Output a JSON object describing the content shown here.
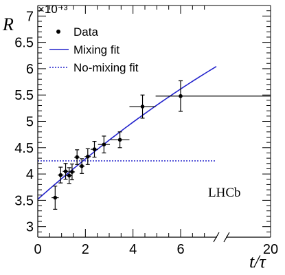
{
  "chart_data": {
    "type": "scatter",
    "ylabel": "R",
    "xlabel": "t/τ",
    "y_exponent_label": "×10⁻³",
    "xlim": [
      0,
      20
    ],
    "ylim": [
      2.8,
      7.2
    ],
    "x_axis_break": true,
    "x_break_position": 7.5,
    "x_tick_labels": [
      "0",
      "2",
      "4",
      "6",
      "20"
    ],
    "y_tick_labels": [
      "3",
      "3.5",
      "4",
      "4.5",
      "5",
      "5.5",
      "6",
      "6.5",
      "7"
    ],
    "annotation": "LHCb",
    "legend": {
      "placement": "top-left",
      "entries": [
        {
          "label": "Data",
          "style": "point",
          "color": "#000000"
        },
        {
          "label": "Mixing fit",
          "style": "solid-line",
          "color": "#2222cc"
        },
        {
          "label": "No-mixing fit",
          "style": "dotted-line",
          "color": "#2222cc"
        }
      ]
    },
    "series": [
      {
        "name": "Data",
        "points": [
          {
            "x": 0.73,
            "xerr": [
              0.15,
              0.15
            ],
            "y": 3.55,
            "yerr": 0.22
          },
          {
            "x": 0.96,
            "xerr": [
              0.12,
              0.12
            ],
            "y": 3.98,
            "yerr": 0.15
          },
          {
            "x": 1.17,
            "xerr": [
              0.12,
              0.12
            ],
            "y": 4.05,
            "yerr": 0.15
          },
          {
            "x": 1.32,
            "xerr": [
              0.12,
              0.12
            ],
            "y": 3.97,
            "yerr": 0.15
          },
          {
            "x": 1.44,
            "xerr": [
              0.12,
              0.12
            ],
            "y": 4.04,
            "yerr": 0.15
          },
          {
            "x": 1.65,
            "xerr": [
              0.12,
              0.12
            ],
            "y": 4.32,
            "yerr": 0.14
          },
          {
            "x": 1.85,
            "xerr": [
              0.12,
              0.12
            ],
            "y": 4.15,
            "yerr": 0.14
          },
          {
            "x": 2.1,
            "xerr": [
              0.13,
              0.13
            ],
            "y": 4.33,
            "yerr": 0.15
          },
          {
            "x": 2.38,
            "xerr": [
              0.16,
              0.16
            ],
            "y": 4.47,
            "yerr": 0.15
          },
          {
            "x": 2.78,
            "xerr": [
              0.25,
              0.25
            ],
            "y": 4.56,
            "yerr": 0.16
          },
          {
            "x": 3.45,
            "xerr": [
              0.4,
              0.4
            ],
            "y": 4.65,
            "yerr": 0.15
          },
          {
            "x": 4.4,
            "xerr": [
              0.55,
              0.55
            ],
            "y": 5.28,
            "yerr": 0.22
          },
          {
            "x": 6.0,
            "xerr": [
              1.05,
              20.0
            ],
            "y": 5.48,
            "yerr": 0.29
          }
        ]
      },
      {
        "name": "Mixing fit",
        "function": "quadratic",
        "coefficients": {
          "c0": 3.52,
          "c1": 0.4,
          "c2": -0.0085
        },
        "x_range": [
          0,
          7.5
        ]
      },
      {
        "name": "No-mixing fit",
        "function": "constant",
        "value": 4.25,
        "x_range": [
          0,
          7.5
        ]
      }
    ],
    "grid": false
  }
}
